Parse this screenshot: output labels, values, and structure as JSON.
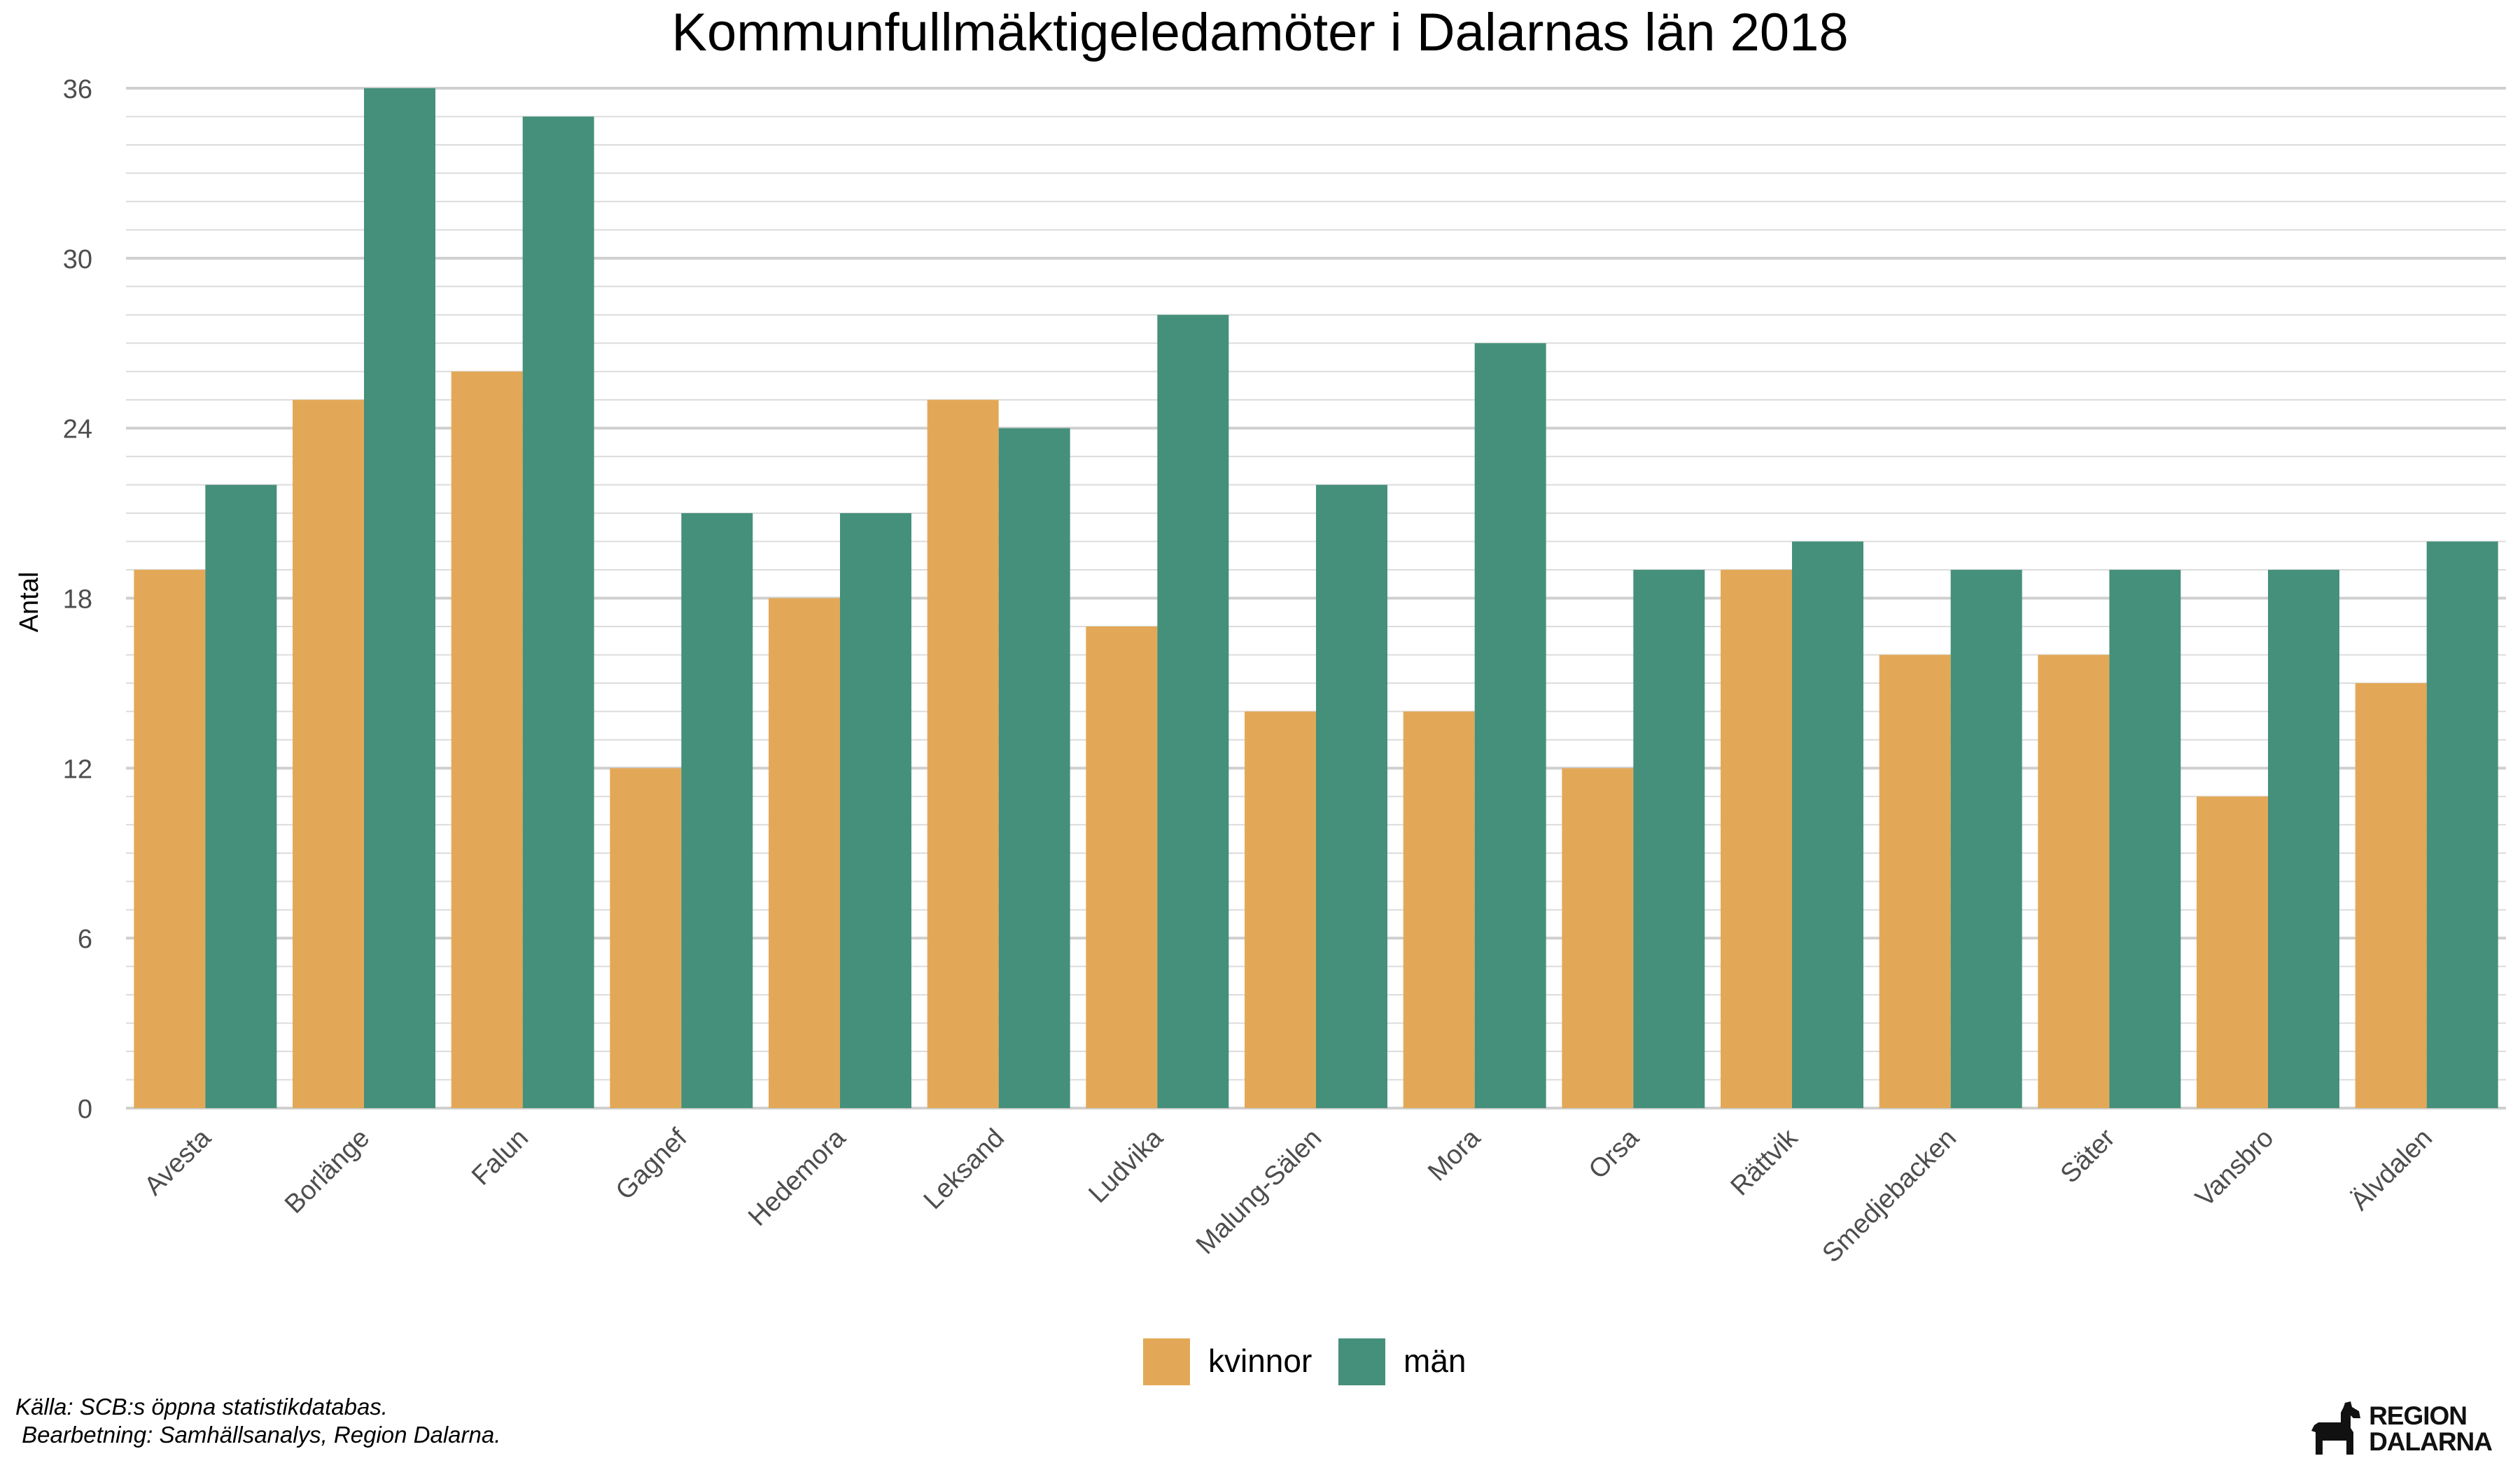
{
  "chart_data": {
    "type": "bar",
    "title": "Kommunfullmäktigeledamöter i Dalarnas län 2018",
    "xlabel": "",
    "ylabel": "Antal",
    "ylim": [
      0,
      36
    ],
    "yticks": [
      0,
      6,
      12,
      18,
      24,
      30,
      36
    ],
    "grid": true,
    "legend_position": "bottom",
    "categories": [
      "Avesta",
      "Borlänge",
      "Falun",
      "Gagnef",
      "Hedemora",
      "Leksand",
      "Ludvika",
      "Malung-Sälen",
      "Mora",
      "Orsa",
      "Rättvik",
      "Smedjebacken",
      "Säter",
      "Vansbro",
      "Älvdalen"
    ],
    "series": [
      {
        "name": "kvinnor",
        "color": "#E3A857",
        "values": [
          19,
          25,
          26,
          12,
          18,
          25,
          17,
          14,
          14,
          12,
          19,
          16,
          16,
          11,
          15
        ]
      },
      {
        "name": "män",
        "color": "#45907A",
        "values": [
          22,
          36,
          35,
          21,
          21,
          24,
          28,
          22,
          27,
          19,
          20,
          19,
          19,
          19,
          20
        ]
      }
    ]
  },
  "caption": {
    "line1": "Källa: SCB:s öppna statistikdatabas.",
    "line2": " Bearbetning: Samhällsanalys, Region Dalarna."
  },
  "logo": {
    "line1": "REGION",
    "line2": "DALARNA",
    "icon": "dala-horse-icon"
  }
}
